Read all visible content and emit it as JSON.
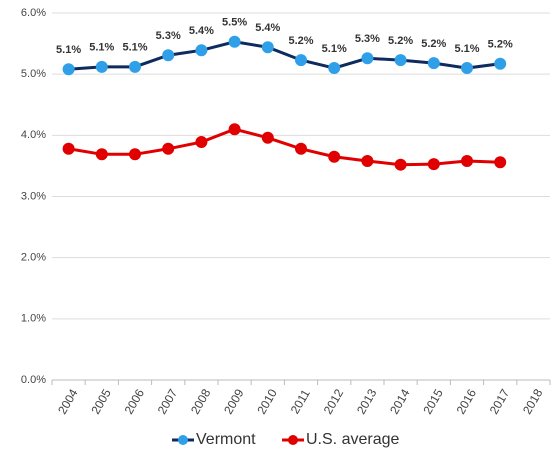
{
  "chart_data": {
    "type": "line",
    "categories": [
      "2004",
      "2005",
      "2006",
      "2007",
      "2008",
      "2009",
      "2010",
      "2011",
      "2012",
      "2013",
      "2014",
      "2015",
      "2016",
      "2017",
      "2018"
    ],
    "series": [
      {
        "name": "Vermont",
        "color": "#0e2a5e",
        "marker_color": "#2fa0e8",
        "values": [
          5.08,
          5.12,
          5.12,
          5.31,
          5.39,
          5.53,
          5.44,
          5.23,
          5.1,
          5.26,
          5.23,
          5.18,
          5.1,
          5.17,
          null
        ],
        "value_labels": [
          "5.1%",
          "5.1%",
          "5.1%",
          "5.3%",
          "5.4%",
          "5.5%",
          "5.4%",
          "5.2%",
          "5.1%",
          "5.3%",
          "5.2%",
          "5.2%",
          "5.1%",
          "5.2%",
          null
        ]
      },
      {
        "name": "U.S. average",
        "color": "#e00000",
        "marker_color": "#e00000",
        "values": [
          3.78,
          3.69,
          3.69,
          3.78,
          3.89,
          4.1,
          3.96,
          3.78,
          3.65,
          3.58,
          3.52,
          3.53,
          3.58,
          3.56,
          null
        ]
      }
    ],
    "ylim": [
      0,
      6
    ],
    "yticks": [
      {
        "value": 0,
        "label": "0.0%"
      },
      {
        "value": 1,
        "label": "1.0%"
      },
      {
        "value": 2,
        "label": "2.0%"
      },
      {
        "value": 3,
        "label": "3.0%"
      },
      {
        "value": 4,
        "label": "4.0%"
      },
      {
        "value": 5,
        "label": "5.0%"
      },
      {
        "value": 6,
        "label": "6.0%"
      }
    ],
    "grid": true,
    "legend": "bottom"
  }
}
